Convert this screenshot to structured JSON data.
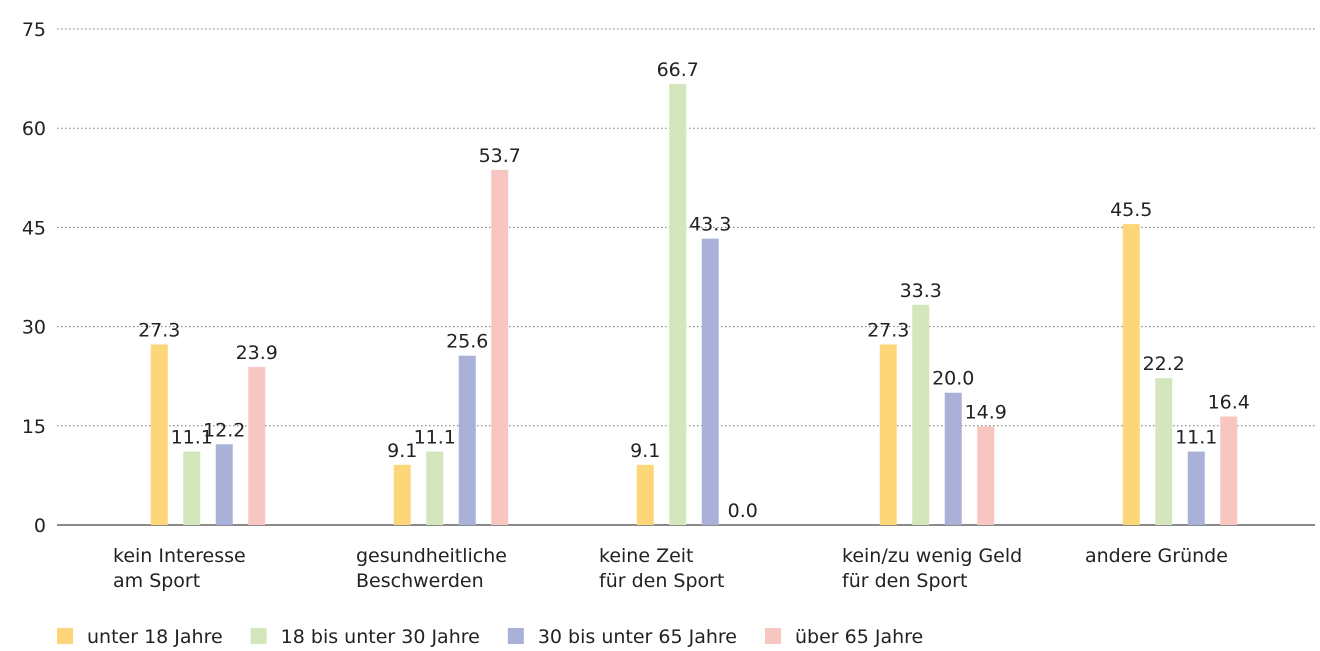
{
  "chart_data": {
    "type": "bar",
    "categories": [
      [
        "kein Interesse",
        "am Sport"
      ],
      [
        "gesundheitliche",
        "Beschwerden"
      ],
      [
        "keine Zeit",
        "für den Sport"
      ],
      [
        "kein/zu wenig Geld",
        "für den Sport"
      ],
      [
        "andere Gründe"
      ]
    ],
    "series": [
      {
        "name": "unter 18 Jahre",
        "color": "#fdd67a",
        "values": [
          27.3,
          9.1,
          9.1,
          27.3,
          45.5
        ],
        "value_labels": [
          "27.3",
          "9.1",
          "9.1",
          "27.3",
          "45.5"
        ]
      },
      {
        "name": "18 bis unter 30 Jahre",
        "color": "#d3e6bc",
        "values": [
          11.1,
          11.1,
          66.7,
          33.3,
          22.2
        ],
        "value_labels": [
          "11.1",
          "11.1",
          "66.7",
          "33.3",
          "22.2"
        ]
      },
      {
        "name": "30 bis unter 65 Jahre",
        "color": "#a9b1d8",
        "values": [
          12.2,
          25.6,
          43.3,
          20.0,
          11.1
        ],
        "value_labels": [
          "12.2",
          "25.6",
          "43.3",
          "20.0",
          "11.1"
        ]
      },
      {
        "name": "über 65 Jahre",
        "color": "#f7c6c0",
        "values": [
          23.9,
          53.7,
          0.0,
          14.9,
          16.4
        ],
        "value_labels": [
          "23.9",
          "53.7",
          "0.0",
          "14.9",
          "16.4"
        ]
      }
    ],
    "ylim": [
      0,
      75
    ],
    "yticks": [
      0,
      15,
      30,
      45,
      60,
      75
    ],
    "grid": true,
    "legend": "bottom"
  }
}
